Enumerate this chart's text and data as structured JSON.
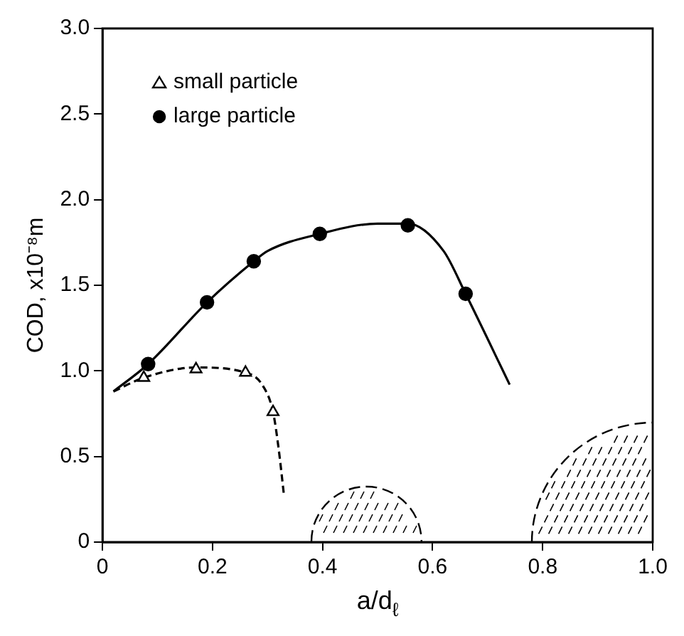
{
  "chart_data": {
    "type": "scatter",
    "xlabel": "a/d$_{ℓ}$",
    "ylabel": "COD, x10⁻⁸m",
    "xlim": [
      0,
      1
    ],
    "xticks": [
      0,
      0.2,
      0.4,
      0.6,
      0.8,
      {
        "value": 1,
        "label": "1.0"
      }
    ],
    "ylim": [
      0,
      3
    ],
    "yticks": [
      0,
      0.5,
      {
        "value": 1,
        "label": "1.0"
      },
      1.5,
      {
        "value": 2,
        "label": "2.0"
      },
      2.5,
      {
        "value": 3,
        "label": "3.0"
      }
    ],
    "grid": false,
    "legend": "top left",
    "series": [
      {
        "type": "line",
        "line_style": "dashed",
        "marker": "none",
        "color": "#000000",
        "x": [
          0.02,
          0.075,
          0.17,
          0.26,
          0.29,
          0.31,
          0.32,
          0.33
        ],
        "values": [
          0.88,
          0.96,
          1.02,
          0.99,
          0.92,
          0.76,
          0.55,
          0.27
        ]
      },
      {
        "type": "line",
        "line_style": "solid",
        "marker": "none",
        "color": "#000000",
        "x": [
          0.02,
          0.083,
          0.19,
          0.275,
          0.3,
          0.395,
          0.5,
          0.555,
          0.62,
          0.66,
          0.74
        ],
        "values": [
          0.88,
          1.04,
          1.4,
          1.64,
          1.7,
          1.8,
          1.86,
          1.86,
          1.7,
          1.45,
          0.92
        ]
      },
      {
        "name": "small particle",
        "type": "scatter",
        "marker": "triangle",
        "color": "#000000",
        "x": [
          0.075,
          0.17,
          0.26,
          0.31
        ],
        "values": [
          0.96,
          1.01,
          0.99,
          0.76
        ]
      },
      {
        "name": "large particle",
        "type": "scatter",
        "marker": "circle",
        "color": "#000000",
        "x": [
          0.083,
          0.19,
          0.275,
          0.395,
          0.555,
          0.66
        ],
        "values": [
          1.04,
          1.4,
          1.64,
          1.8,
          1.85,
          1.45
        ]
      }
    ]
  }
}
